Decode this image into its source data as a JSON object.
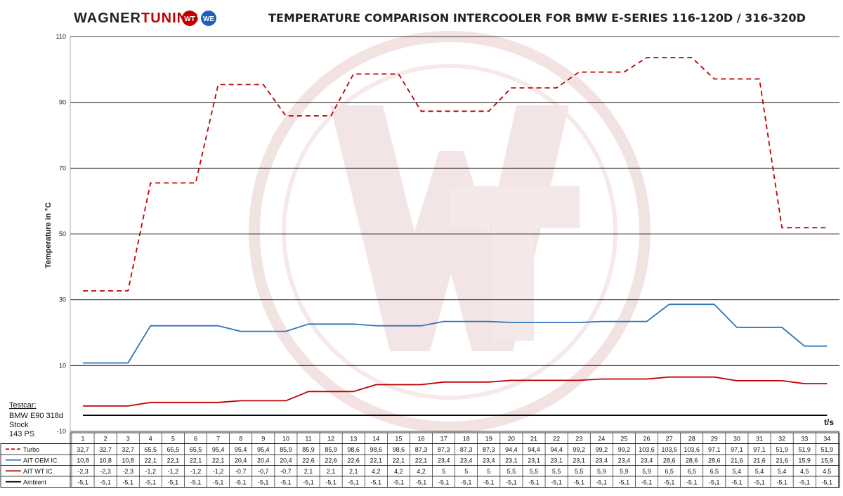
{
  "header": {
    "brand_dark": "WAGNER",
    "brand_red": "TUNING",
    "title": "TEMPERATURE COMPARISON INTERCOOLER FOR BMW E-SERIES 116-120D / 316-320D"
  },
  "testcar": {
    "label": "Testcar:",
    "lines": [
      "BMW E90 318d",
      "Stock",
      "143 PS"
    ]
  },
  "colors": {
    "turbo": "#c00000",
    "oem": "#2e75b6",
    "wt": "#c00000",
    "ambient": "#000000",
    "watermark": "#e6c4c4"
  },
  "chart_data": {
    "type": "line",
    "ylabel": "Temperature in °C",
    "xlabel": "t/s",
    "ylim": [
      -10,
      110
    ],
    "yticks": [
      -10,
      10,
      30,
      50,
      70,
      90,
      110
    ],
    "x": [
      "1",
      "2",
      "3",
      "4",
      "5",
      "6",
      "7",
      "8",
      "9",
      "10",
      "11",
      "12",
      "13",
      "14",
      "15",
      "16",
      "17",
      "18",
      "19",
      "20",
      "21",
      "22",
      "23",
      "24",
      "25",
      "26",
      "27",
      "28",
      "29",
      "30",
      "31",
      "32",
      "33",
      "34"
    ],
    "series": [
      {
        "name": "Turbo",
        "style": "dashed",
        "values": [
          32.7,
          32.7,
          32.7,
          65.5,
          65.5,
          65.5,
          95.4,
          95.4,
          95.4,
          85.9,
          85.9,
          85.9,
          98.6,
          98.6,
          98.6,
          87.3,
          87.3,
          87.3,
          87.3,
          94.4,
          94.4,
          94.4,
          99.2,
          99.2,
          99.2,
          103.6,
          103.6,
          103.6,
          97.1,
          97.1,
          97.1,
          51.9,
          51.9,
          51.9
        ],
        "labels": [
          "32,7",
          "32,7",
          "32,7",
          "65,5",
          "65,5",
          "65,5",
          "95,4",
          "95,4",
          "95,4",
          "85,9",
          "85,9",
          "85,9",
          "98,6",
          "98,6",
          "98,6",
          "87,3",
          "87,3",
          "87,3",
          "87,3",
          "94,4",
          "94,4",
          "94,4",
          "99,2",
          "99,2",
          "99,2",
          "103,6",
          "103,6",
          "103,6",
          "97,1",
          "97,1",
          "97,1",
          "51,9",
          "51,9",
          "51,9"
        ]
      },
      {
        "name": "AIT OEM  IC",
        "style": "solid",
        "values": [
          10.8,
          10.8,
          10.8,
          22.1,
          22.1,
          22.1,
          22.1,
          20.4,
          20.4,
          20.4,
          22.6,
          22.6,
          22.6,
          22.1,
          22.1,
          22.1,
          23.4,
          23.4,
          23.4,
          23.1,
          23.1,
          23.1,
          23.1,
          23.4,
          23.4,
          23.4,
          28.6,
          28.6,
          28.6,
          21.6,
          21.6,
          21.6,
          15.9,
          15.9
        ],
        "labels": [
          "10,8",
          "10,8",
          "10,8",
          "22,1",
          "22,1",
          "22,1",
          "22,1",
          "20,4",
          "20,4",
          "20,4",
          "22,6",
          "22,6",
          "22,6",
          "22,1",
          "22,1",
          "22,1",
          "23,4",
          "23,4",
          "23,4",
          "23,1",
          "23,1",
          "23,1",
          "23,1",
          "23,4",
          "23,4",
          "23,4",
          "28,6",
          "28,6",
          "28,6",
          "21,6",
          "21,6",
          "21,6",
          "15,9",
          "15,9"
        ]
      },
      {
        "name": "AIT WT IC",
        "style": "solid",
        "values": [
          -2.3,
          -2.3,
          -2.3,
          -1.2,
          -1.2,
          -1.2,
          -1.2,
          -0.7,
          -0.7,
          -0.7,
          2.1,
          2.1,
          2.1,
          4.2,
          4.2,
          4.2,
          5,
          5,
          5,
          5.5,
          5.5,
          5.5,
          5.5,
          5.9,
          5.9,
          5.9,
          6.5,
          6.5,
          6.5,
          5.4,
          5.4,
          5.4,
          4.5,
          4.5
        ],
        "labels": [
          "-2,3",
          "-2,3",
          "-2,3",
          "-1,2",
          "-1,2",
          "-1,2",
          "-1,2",
          "-0,7",
          "-0,7",
          "-0,7",
          "2,1",
          "2,1",
          "2,1",
          "4,2",
          "4,2",
          "4,2",
          "5",
          "5",
          "5",
          "5,5",
          "5,5",
          "5,5",
          "5,5",
          "5,9",
          "5,9",
          "5,9",
          "6,5",
          "6,5",
          "6,5",
          "5,4",
          "5,4",
          "5,4",
          "4,5",
          "4,5"
        ]
      },
      {
        "name": "Ambient",
        "style": "solid",
        "values": [
          -5.1,
          -5.1,
          -5.1,
          -5.1,
          -5.1,
          -5.1,
          -5.1,
          -5.1,
          -5.1,
          -5.1,
          -5.1,
          -5.1,
          -5.1,
          -5.1,
          -5.1,
          -5.1,
          -5.1,
          -5.1,
          -5.1,
          -5.1,
          -5.1,
          -5.1,
          -5.1,
          -5.1,
          -5.1,
          -5.1,
          -5.1,
          -5.1,
          -5.1,
          -5.1,
          -5.1,
          -5.1,
          -5.1,
          -5.1
        ],
        "labels": [
          "-5,1",
          "-5,1",
          "-5,1",
          "-5,1",
          "-5,1",
          "-5,1",
          "-5,1",
          "-5,1",
          "-5,1",
          "-5,1",
          "-5,1",
          "-5,1",
          "-5,1",
          "-5,1",
          "-5,1",
          "-5,1",
          "-5,1",
          "-5,1",
          "-5,1",
          "-5,1",
          "-5,1",
          "-5,1",
          "-5,1",
          "-5,1",
          "-5,1",
          "-5,1",
          "-5,1",
          "-5,1",
          "-5,1",
          "-5,1",
          "-5,1",
          "-5,1",
          "-5,1",
          "-5,1"
        ]
      }
    ],
    "grid": true,
    "legend": "table-below"
  }
}
